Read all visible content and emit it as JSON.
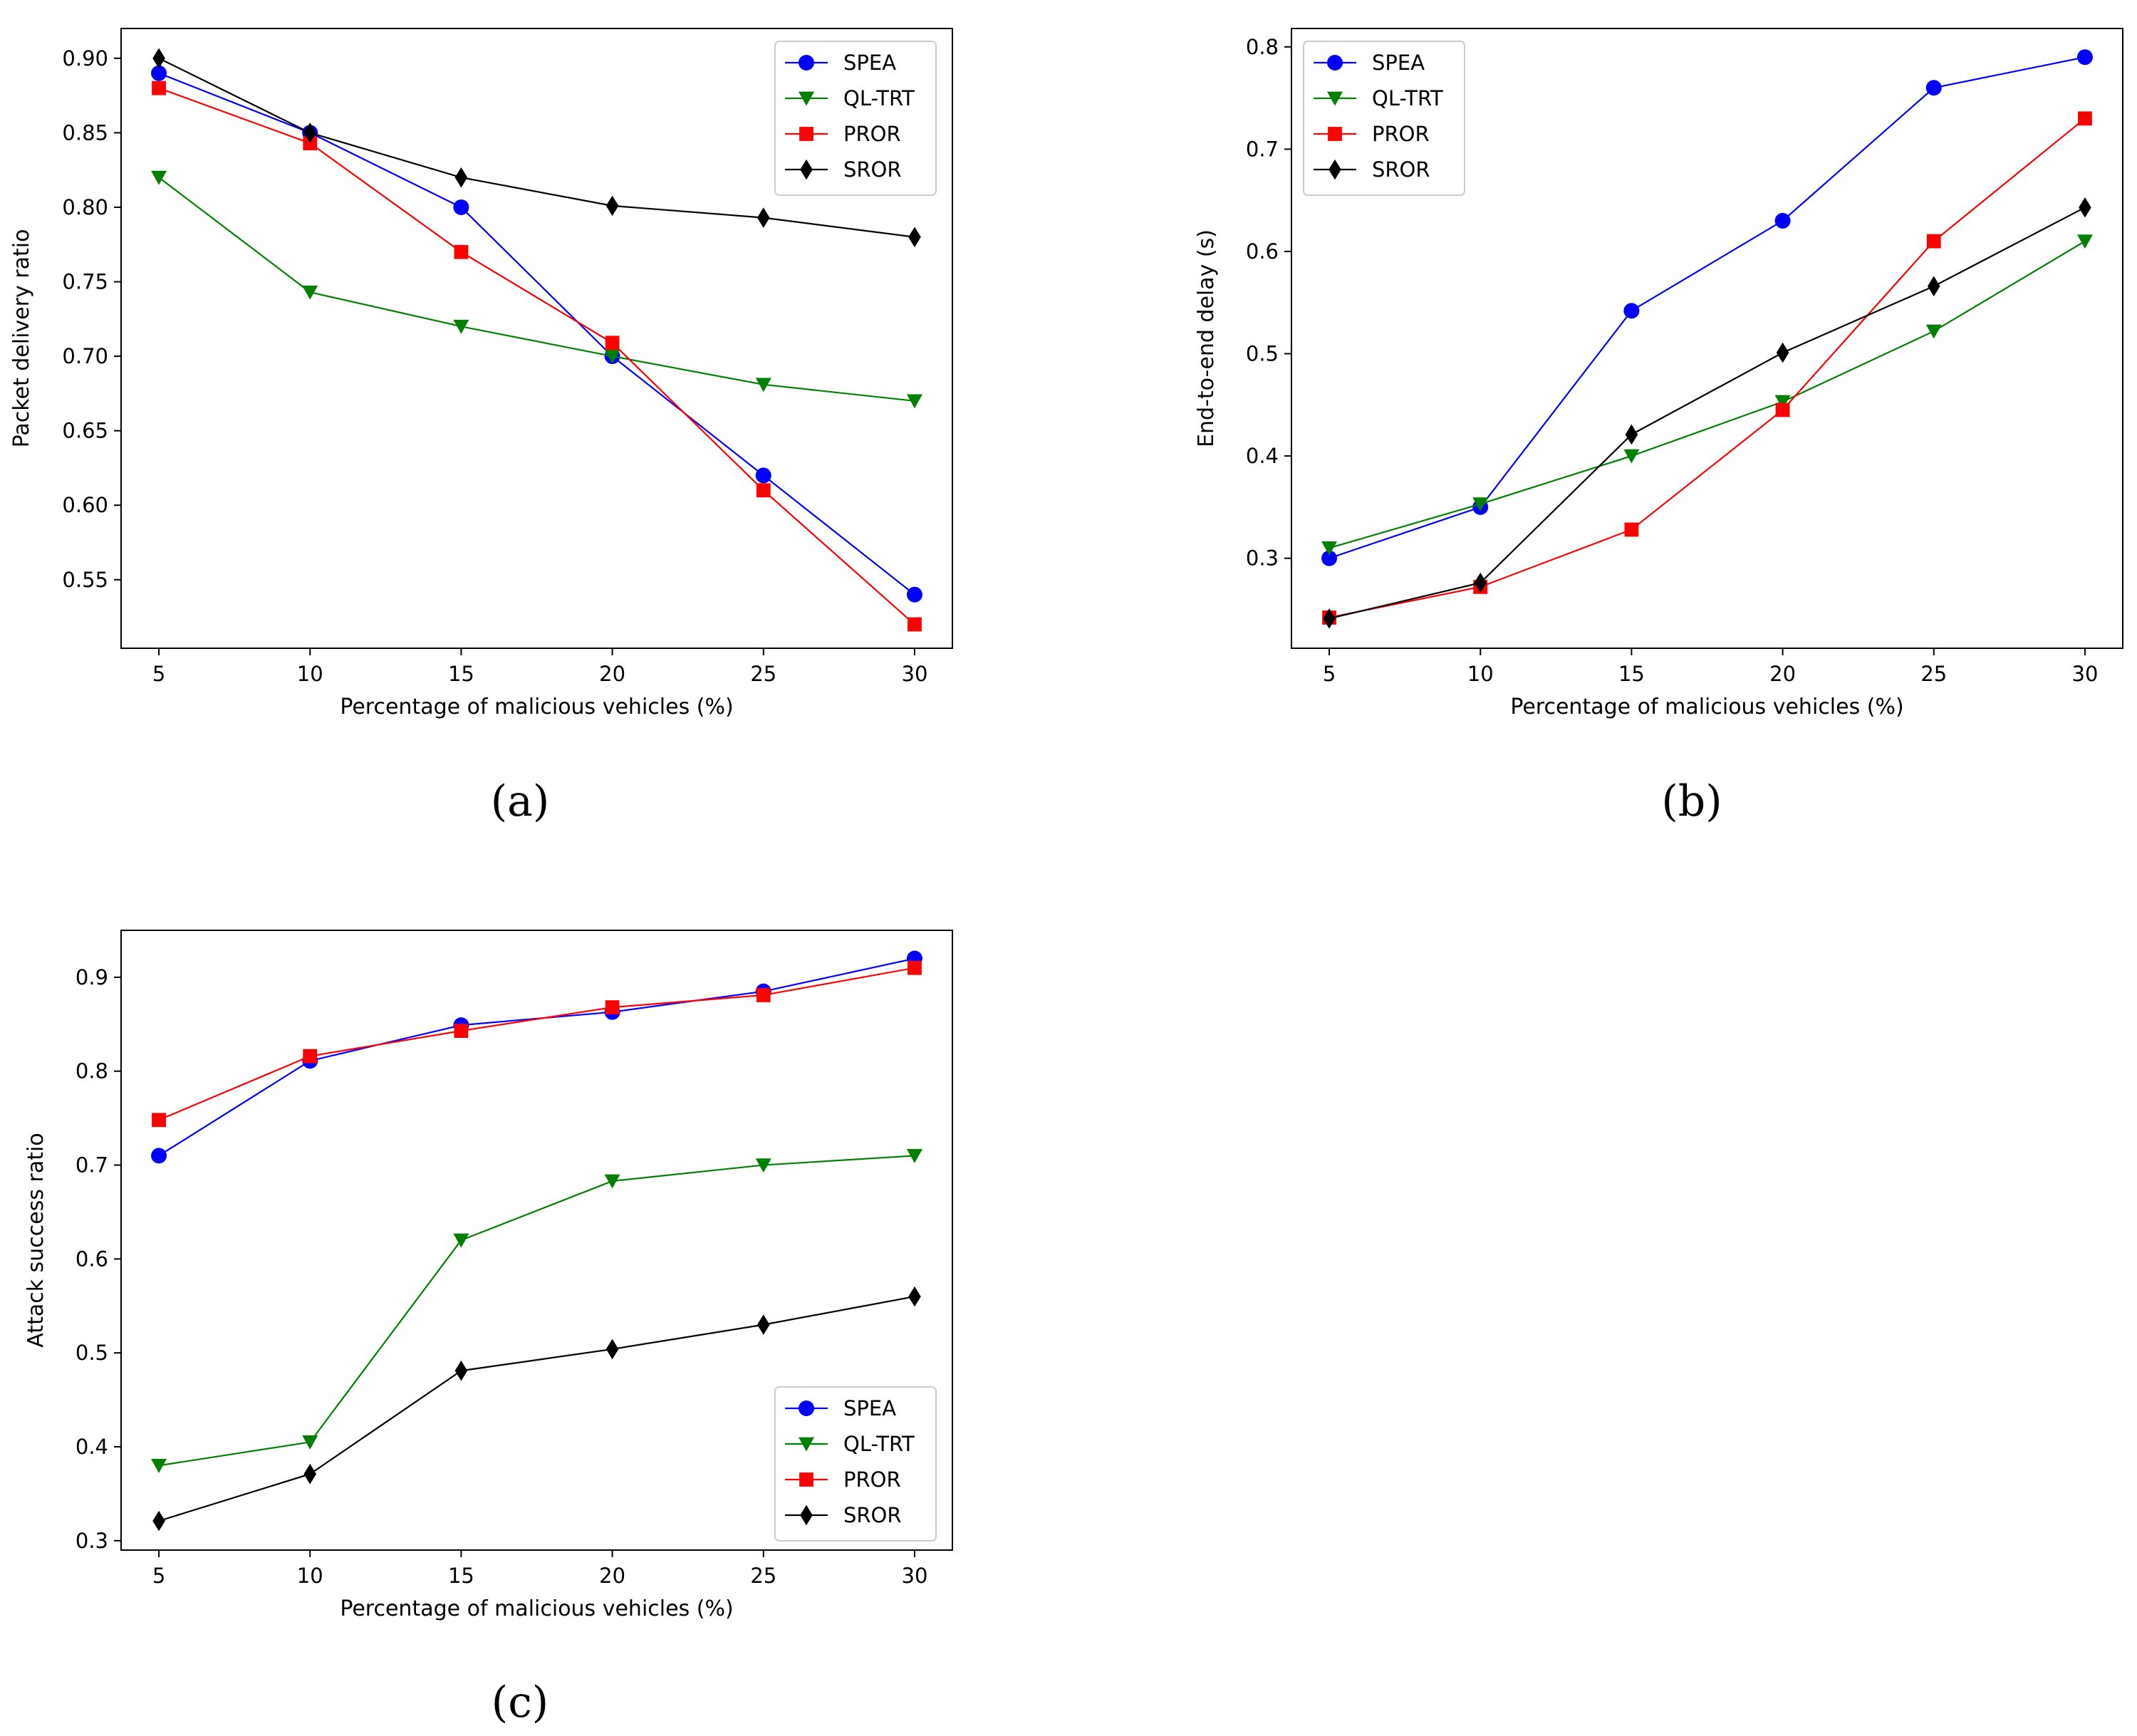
{
  "chart_data": [
    {
      "id": "a",
      "type": "line",
      "panel_label": "(a)",
      "xlabel": "Percentage of malicious vehicles (%)",
      "ylabel": "Packet delivery ratio",
      "x": [
        5,
        10,
        15,
        20,
        25,
        30
      ],
      "xlim": [
        3.75,
        31.25
      ],
      "ylim": [
        0.504,
        0.92
      ],
      "yticks": [
        0.55,
        0.6,
        0.65,
        0.7,
        0.75,
        0.8,
        0.85,
        0.9
      ],
      "ytick_labels": [
        "0.55",
        "0.60",
        "0.65",
        "0.70",
        "0.75",
        "0.80",
        "0.85",
        "0.90"
      ],
      "legend_position": "top-right",
      "series": [
        {
          "name": "SPEA",
          "color": "#0000ff",
          "marker": "circle",
          "values": [
            0.89,
            0.85,
            0.8,
            0.7,
            0.62,
            0.54
          ]
        },
        {
          "name": "QL-TRT",
          "color": "#008000",
          "marker": "triangle-down",
          "values": [
            0.82,
            0.743,
            0.72,
            0.7,
            0.681,
            0.67
          ]
        },
        {
          "name": "PROR",
          "color": "#ff0000",
          "marker": "square",
          "values": [
            0.88,
            0.843,
            0.77,
            0.709,
            0.61,
            0.52
          ]
        },
        {
          "name": "SROR",
          "color": "#000000",
          "marker": "diamond",
          "values": [
            0.9,
            0.85,
            0.82,
            0.801,
            0.793,
            0.78
          ]
        }
      ]
    },
    {
      "id": "b",
      "type": "line",
      "panel_label": "(b)",
      "xlabel": "Percentage of malicious vehicles (%)",
      "ylabel": "End-to-end delay (s)",
      "x": [
        5,
        10,
        15,
        20,
        25,
        30
      ],
      "xlim": [
        3.75,
        31.25
      ],
      "ylim": [
        0.212,
        0.818
      ],
      "yticks": [
        0.3,
        0.4,
        0.5,
        0.6,
        0.7,
        0.8
      ],
      "ytick_labels": [
        "0.3",
        "0.4",
        "0.5",
        "0.6",
        "0.7",
        "0.8"
      ],
      "legend_position": "top-left",
      "series": [
        {
          "name": "SPEA",
          "color": "#0000ff",
          "marker": "circle",
          "values": [
            0.3,
            0.35,
            0.542,
            0.63,
            0.76,
            0.79
          ]
        },
        {
          "name": "QL-TRT",
          "color": "#008000",
          "marker": "triangle-down",
          "values": [
            0.31,
            0.353,
            0.4,
            0.453,
            0.522,
            0.61
          ]
        },
        {
          "name": "PROR",
          "color": "#ff0000",
          "marker": "square",
          "values": [
            0.242,
            0.272,
            0.328,
            0.445,
            0.61,
            0.73
          ]
        },
        {
          "name": "SROR",
          "color": "#000000",
          "marker": "diamond",
          "values": [
            0.241,
            0.276,
            0.421,
            0.501,
            0.566,
            0.643
          ]
        }
      ]
    },
    {
      "id": "c",
      "type": "line",
      "panel_label": "(c)",
      "xlabel": "Percentage of malicious vehicles (%)",
      "ylabel": "Attack success ratio",
      "x": [
        5,
        10,
        15,
        20,
        25,
        30
      ],
      "xlim": [
        3.75,
        31.25
      ],
      "ylim": [
        0.29,
        0.95
      ],
      "yticks": [
        0.3,
        0.4,
        0.5,
        0.6,
        0.7,
        0.8,
        0.9
      ],
      "ytick_labels": [
        "0.3",
        "0.4",
        "0.5",
        "0.6",
        "0.7",
        "0.8",
        "0.9"
      ],
      "legend_position": "bottom-right",
      "series": [
        {
          "name": "SPEA",
          "color": "#0000ff",
          "marker": "circle",
          "values": [
            0.71,
            0.811,
            0.849,
            0.863,
            0.885,
            0.92
          ]
        },
        {
          "name": "QL-TRT",
          "color": "#008000",
          "marker": "triangle-down",
          "values": [
            0.38,
            0.405,
            0.62,
            0.683,
            0.7,
            0.71
          ]
        },
        {
          "name": "PROR",
          "color": "#ff0000",
          "marker": "square",
          "values": [
            0.748,
            0.816,
            0.843,
            0.868,
            0.881,
            0.91
          ]
        },
        {
          "name": "SROR",
          "color": "#000000",
          "marker": "diamond",
          "values": [
            0.321,
            0.371,
            0.481,
            0.504,
            0.53,
            0.56
          ]
        }
      ]
    }
  ]
}
